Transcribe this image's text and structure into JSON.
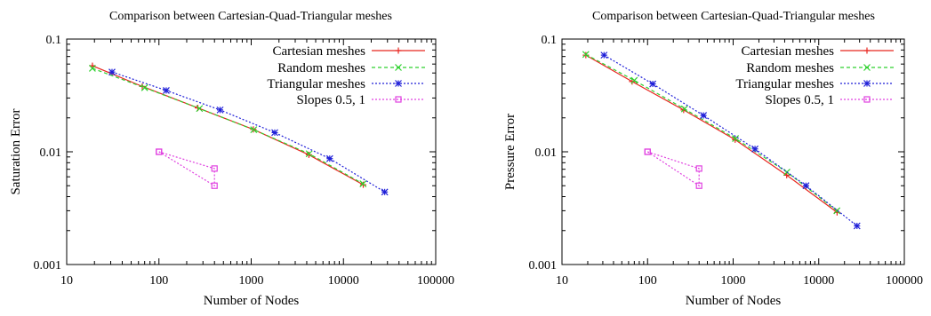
{
  "chart_data": [
    {
      "type": "line",
      "title": "Comparison between Cartesian-Quad-Triangular meshes",
      "xlabel": "Number of Nodes",
      "ylabel": "Saturation Error",
      "xscale": "log",
      "yscale": "log",
      "xlim": [
        10,
        100000
      ],
      "ylim": [
        0.001,
        0.1
      ],
      "xticks": [
        "10",
        "100",
        "1000",
        "10000",
        "100000"
      ],
      "yticks": [
        "0.1",
        "0.01",
        "0.001"
      ],
      "grid": false,
      "legend_position": "top-right",
      "series": [
        {
          "name": "Cartesian meshes",
          "color": "#e8261f",
          "marker": "plus",
          "dash": "solid",
          "x": [
            19,
            66,
            264,
            1055,
            4222,
            16384
          ],
          "y": [
            0.058,
            0.038,
            0.0245,
            0.0158,
            0.0094,
            0.0051
          ]
        },
        {
          "name": "Random meshes",
          "color": "#2ed02e",
          "marker": "cross",
          "dash": "dashed",
          "x": [
            19,
            70,
            275,
            1065,
            4250,
            16300
          ],
          "y": [
            0.055,
            0.037,
            0.0242,
            0.0157,
            0.0096,
            0.0052
          ]
        },
        {
          "name": "Triangular meshes",
          "color": "#1f1fd8",
          "marker": "star",
          "dash": "dotted",
          "x": [
            31,
            120,
            460,
            1800,
            7100,
            28000
          ],
          "y": [
            0.051,
            0.035,
            0.0235,
            0.0148,
            0.0087,
            0.0044
          ]
        },
        {
          "name": "Slopes 0.5, 1",
          "color": "#e040e0",
          "marker": "square",
          "dash": "dotted",
          "x": [
            100,
            400,
            400,
            100
          ],
          "y": [
            0.01,
            0.005,
            0.0071,
            0.01
          ]
        }
      ]
    },
    {
      "type": "line",
      "title": "Comparison between Cartesian-Quad-Triangular meshes",
      "xlabel": "Number of Nodes",
      "ylabel": "Pressure Error",
      "xscale": "log",
      "yscale": "log",
      "xlim": [
        10,
        100000
      ],
      "ylim": [
        0.001,
        0.1
      ],
      "xticks": [
        "10",
        "100",
        "1000",
        "10000",
        "100000"
      ],
      "yticks": [
        "0.1",
        "0.01",
        "0.001"
      ],
      "grid": false,
      "legend_position": "top-right",
      "series": [
        {
          "name": "Cartesian meshes",
          "color": "#e8261f",
          "marker": "plus",
          "dash": "solid",
          "x": [
            19,
            66,
            264,
            1055,
            4222,
            16384
          ],
          "y": [
            0.072,
            0.042,
            0.0235,
            0.0128,
            0.0062,
            0.0029
          ]
        },
        {
          "name": "Random meshes",
          "color": "#2ed02e",
          "marker": "cross",
          "dash": "dashed",
          "x": [
            19,
            70,
            270,
            1065,
            4250,
            16300
          ],
          "y": [
            0.073,
            0.043,
            0.024,
            0.0131,
            0.0066,
            0.003
          ]
        },
        {
          "name": "Triangular meshes",
          "color": "#1f1fd8",
          "marker": "star",
          "dash": "dotted",
          "x": [
            31,
            115,
            450,
            1800,
            7100,
            28000
          ],
          "y": [
            0.072,
            0.04,
            0.021,
            0.0106,
            0.005,
            0.0022
          ]
        },
        {
          "name": "Slopes 0.5, 1",
          "color": "#e040e0",
          "marker": "square",
          "dash": "dotted",
          "x": [
            100,
            400,
            400,
            100
          ],
          "y": [
            0.01,
            0.005,
            0.0071,
            0.01
          ]
        }
      ]
    }
  ]
}
